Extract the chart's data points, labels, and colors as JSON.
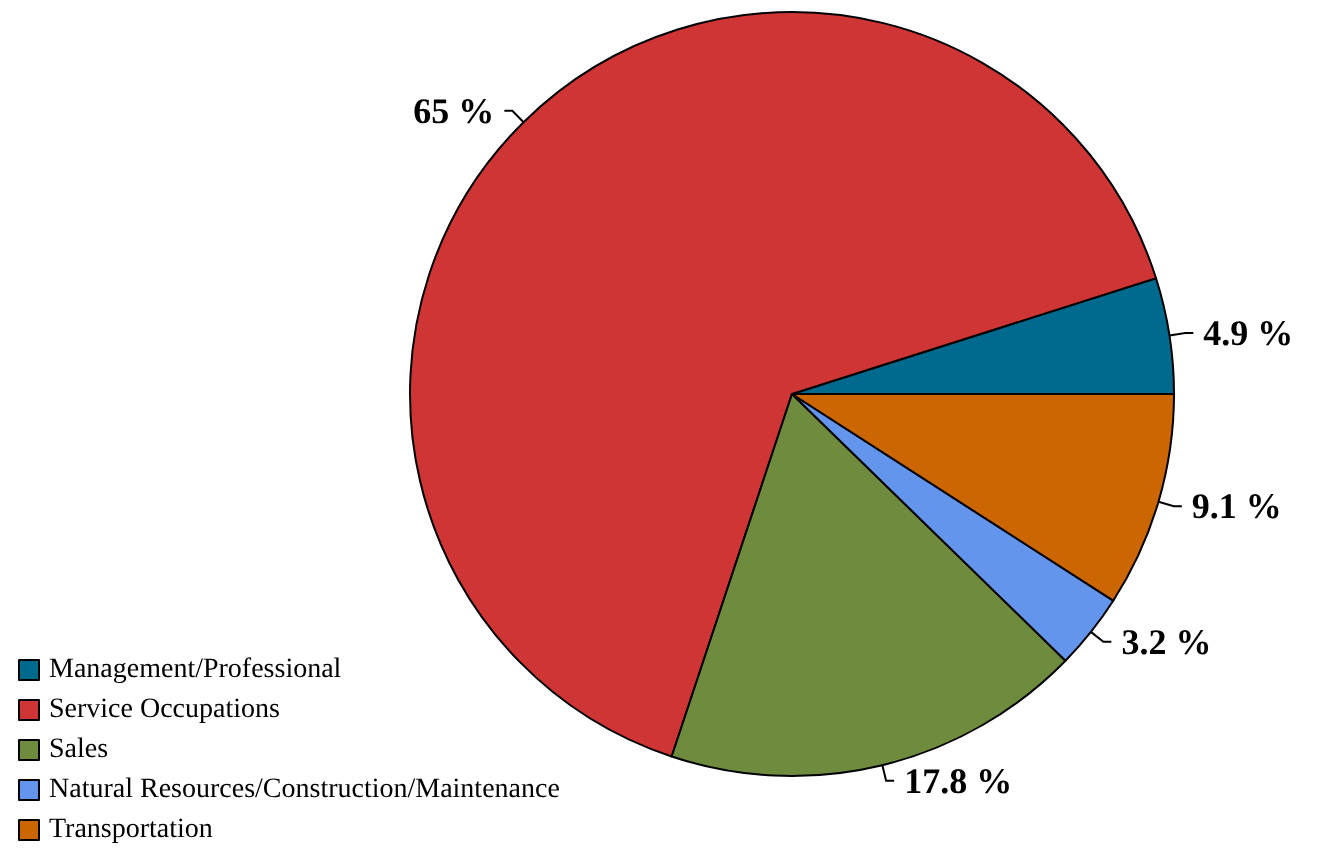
{
  "chart_data": {
    "type": "pie",
    "categories": [
      "Management/Professional",
      "Service Occupations",
      "Sales",
      "Natural Resources/Construction/Maintenance",
      "Transportation"
    ],
    "values": [
      4.9,
      65,
      17.8,
      3.2,
      9.1
    ],
    "colors": [
      "#006a8e",
      "#d03535",
      "#6f8c3e",
      "#6495ed",
      "#cc6600"
    ],
    "value_labels": [
      "4.9 %",
      "65 %",
      "17.8 %",
      "3.2 %",
      "9.1 %"
    ],
    "legend": "bottom left"
  }
}
